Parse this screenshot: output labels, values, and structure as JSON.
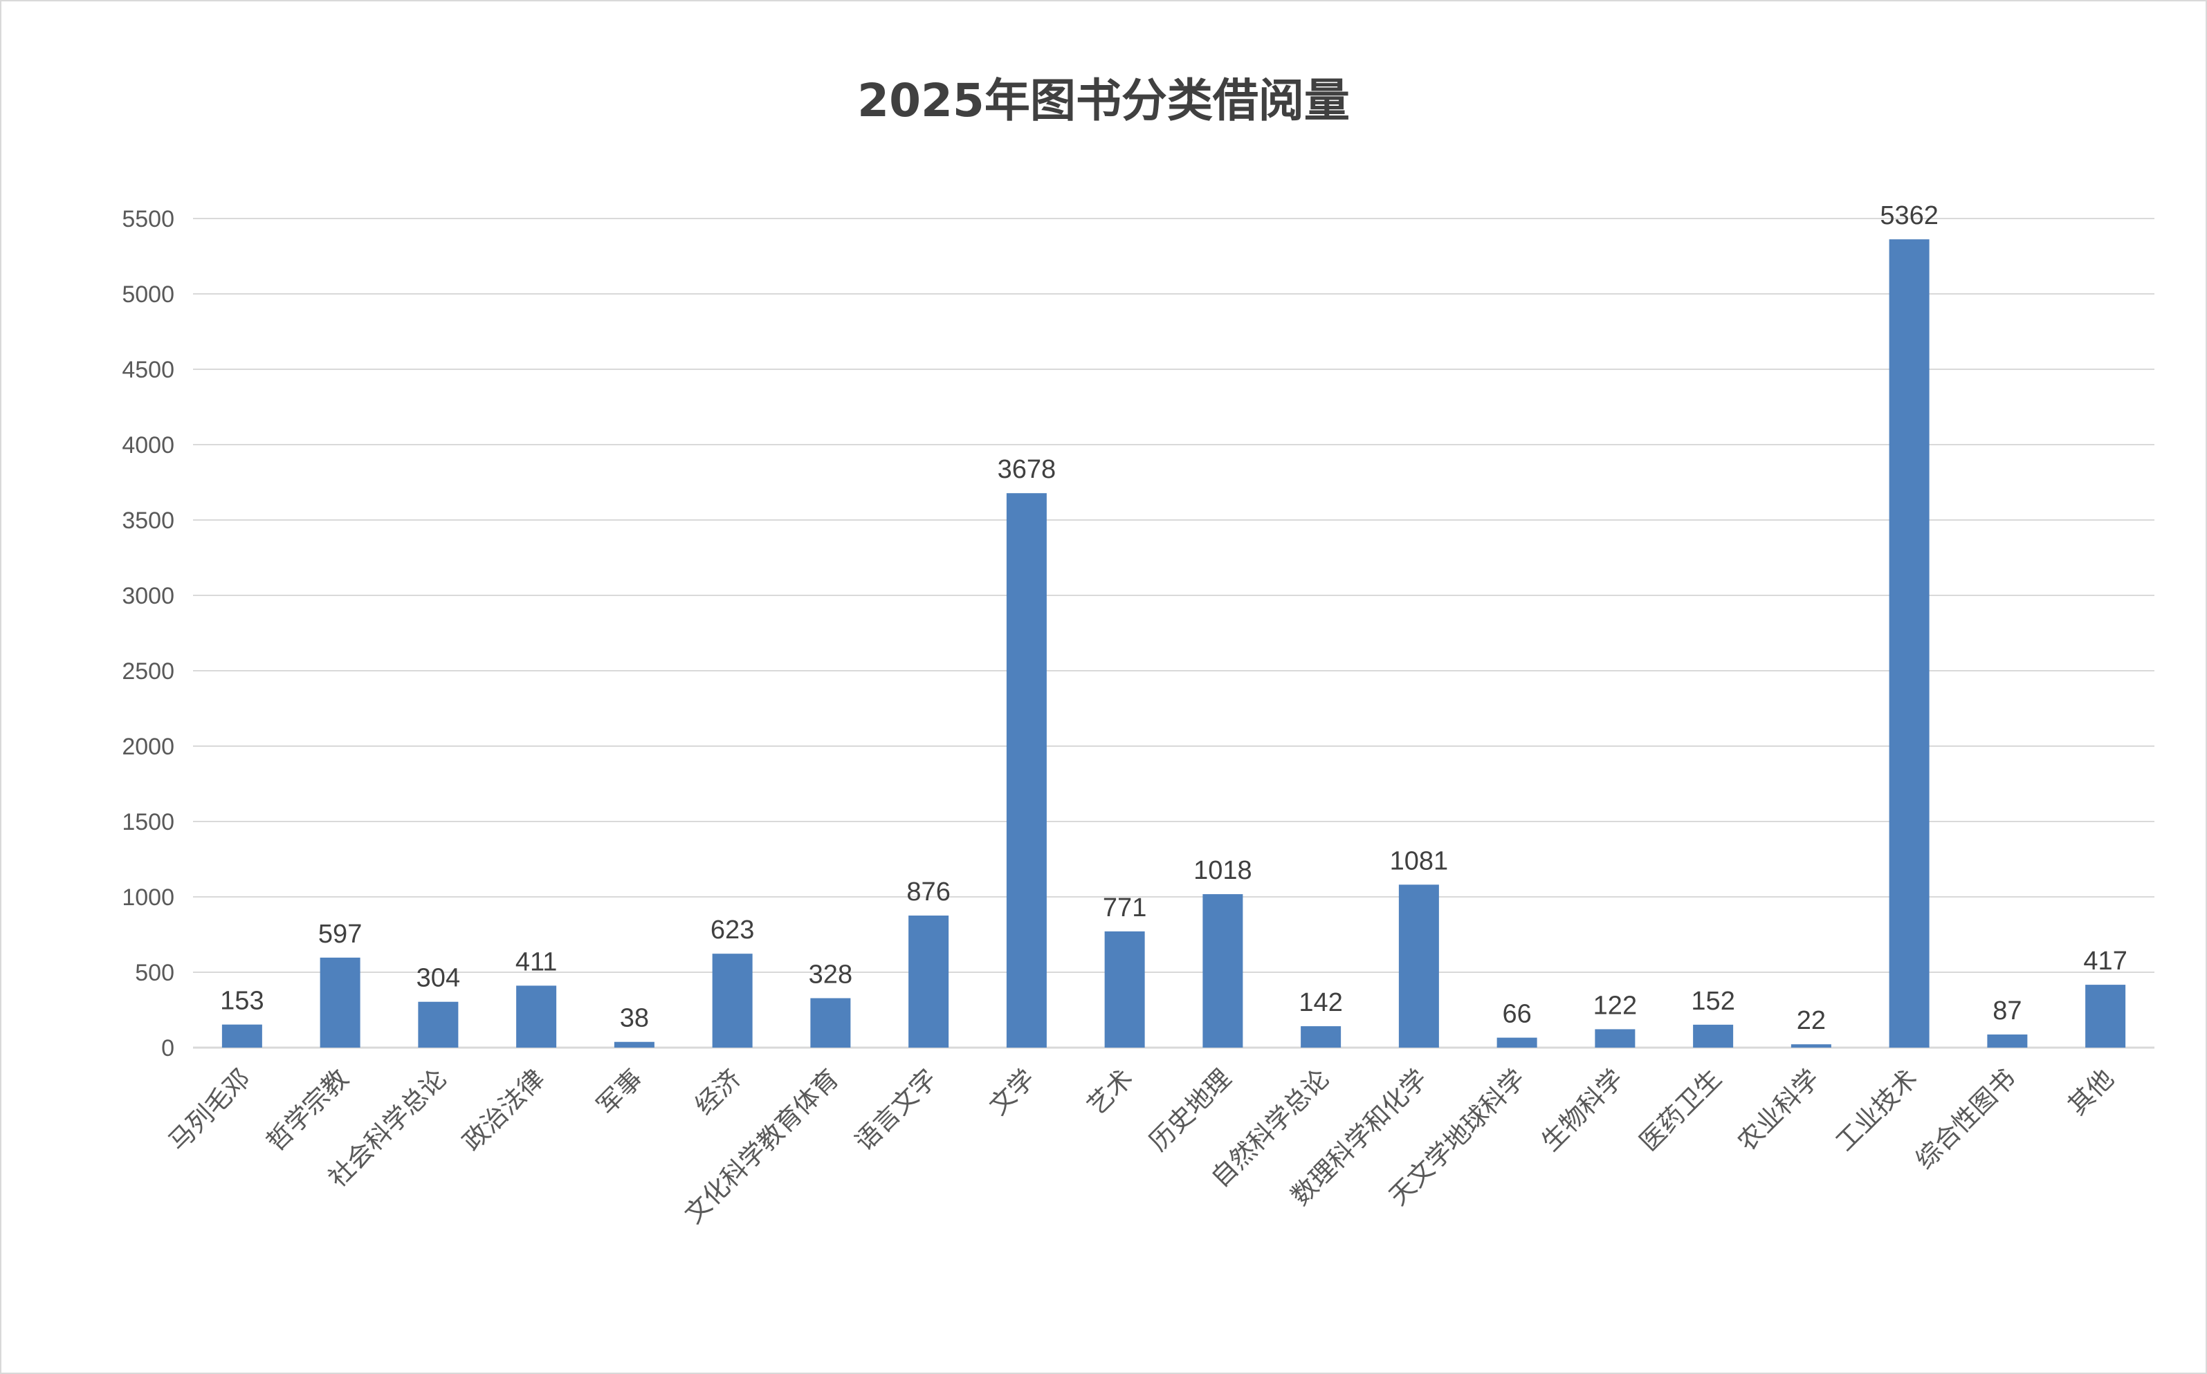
{
  "chart_data": {
    "type": "bar",
    "title": "2025年图书分类借阅量",
    "xlabel": "",
    "ylabel": "",
    "ylim": [
      0,
      5500
    ],
    "yticks": [
      0,
      500,
      1000,
      1500,
      2000,
      2500,
      3000,
      3500,
      4000,
      4500,
      5000,
      5500
    ],
    "grid": true,
    "legend": "none",
    "bar_color": "#4F81BD",
    "gridline_color": "#D9D9D9",
    "categories": [
      "马列毛邓",
      "哲学宗教",
      "社会科学总论",
      "政治法律",
      "军事",
      "经济",
      "文化科学教育体育",
      "语言文字",
      "文学",
      "艺术",
      "历史地理",
      "自然科学总论",
      "数理科学和化学",
      "天文学地球科学",
      "生物科学",
      "医药卫生",
      "农业科学",
      "工业技术",
      "综合性图书",
      "其他"
    ],
    "values": [
      153,
      597,
      304,
      411,
      38,
      623,
      328,
      876,
      3678,
      771,
      1018,
      142,
      1081,
      66,
      122,
      152,
      22,
      5362,
      87,
      417
    ]
  }
}
